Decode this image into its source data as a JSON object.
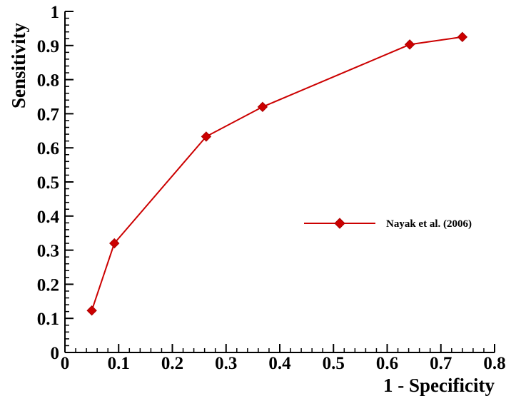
{
  "chart_data": {
    "type": "line",
    "title": "",
    "xlabel": "1 - Specificity",
    "ylabel": "Sensitivity",
    "xlim": [
      0,
      0.8
    ],
    "ylim": [
      0,
      1
    ],
    "x_ticks": [
      "0",
      "0.1",
      "0.2",
      "0.3",
      "0.4",
      "0.5",
      "0.6",
      "0.7",
      "0.8"
    ],
    "y_ticks": [
      "0",
      "0.1",
      "0.2",
      "0.3",
      "0.4",
      "0.5",
      "0.6",
      "0.7",
      "0.8",
      "0.9",
      "1"
    ],
    "grid": false,
    "legend_position": "right",
    "series": [
      {
        "name": "Nayak et al. (2006)",
        "color": "#cc0000",
        "marker": "diamond",
        "x": [
          0.05,
          0.092,
          0.263,
          0.368,
          0.642,
          0.74
        ],
        "y": [
          0.123,
          0.32,
          0.633,
          0.72,
          0.903,
          0.925
        ]
      }
    ]
  }
}
